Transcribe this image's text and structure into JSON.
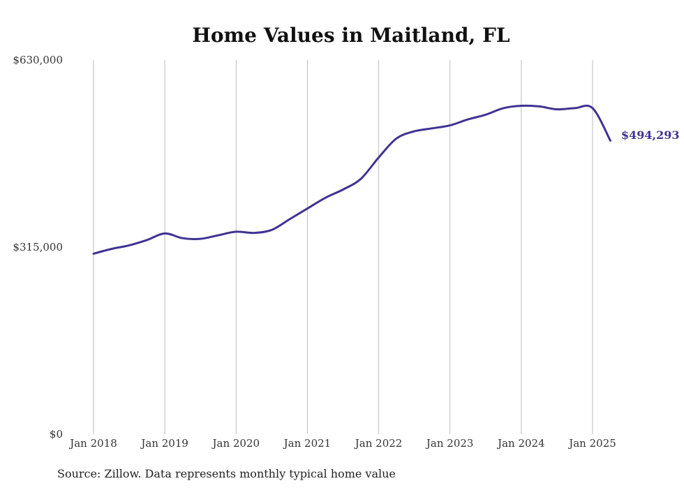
{
  "chart_data": {
    "type": "line",
    "title": "Home Values in Maitland, FL",
    "xlabel": "",
    "ylabel": "",
    "ylim": [
      0,
      630000
    ],
    "yticks": [
      {
        "value": 0,
        "label": "$0"
      },
      {
        "value": 315000,
        "label": "$315,000"
      },
      {
        "value": 630000,
        "label": "$630,000"
      }
    ],
    "xticks": [
      {
        "value": 2018,
        "label": "Jan 2018"
      },
      {
        "value": 2019,
        "label": "Jan 2019"
      },
      {
        "value": 2020,
        "label": "Jan 2020"
      },
      {
        "value": 2021,
        "label": "Jan 2021"
      },
      {
        "value": 2022,
        "label": "Jan 2022"
      },
      {
        "value": 2023,
        "label": "Jan 2023"
      },
      {
        "value": 2024,
        "label": "Jan 2024"
      },
      {
        "value": 2025,
        "label": "Jan 2025"
      }
    ],
    "xlim": [
      2018,
      2025.25
    ],
    "grid": "vertical",
    "line_color": "#3f3392",
    "end_label": "$494,293",
    "series": [
      {
        "x": [
          2018.0,
          2018.25,
          2018.5,
          2018.75,
          2019.0,
          2019.25,
          2019.5,
          2019.75,
          2020.0,
          2020.25,
          2020.5,
          2020.75,
          2021.0,
          2021.25,
          2021.5,
          2021.75,
          2022.0,
          2022.25,
          2022.5,
          2022.75,
          2023.0,
          2023.25,
          2023.5,
          2023.75,
          2024.0,
          2024.25,
          2024.5,
          2024.75,
          2025.0,
          2025.25
        ],
        "y": [
          304000,
          312000,
          318000,
          327000,
          338000,
          330000,
          329000,
          335000,
          341000,
          339000,
          344000,
          362000,
          380000,
          398000,
          412000,
          430000,
          466000,
          498000,
          510000,
          515000,
          520000,
          530000,
          538000,
          549000,
          553000,
          552000,
          547000,
          549000,
          549000,
          494293
        ]
      }
    ]
  },
  "source": "Source: Zillow. Data represents monthly typical home value"
}
